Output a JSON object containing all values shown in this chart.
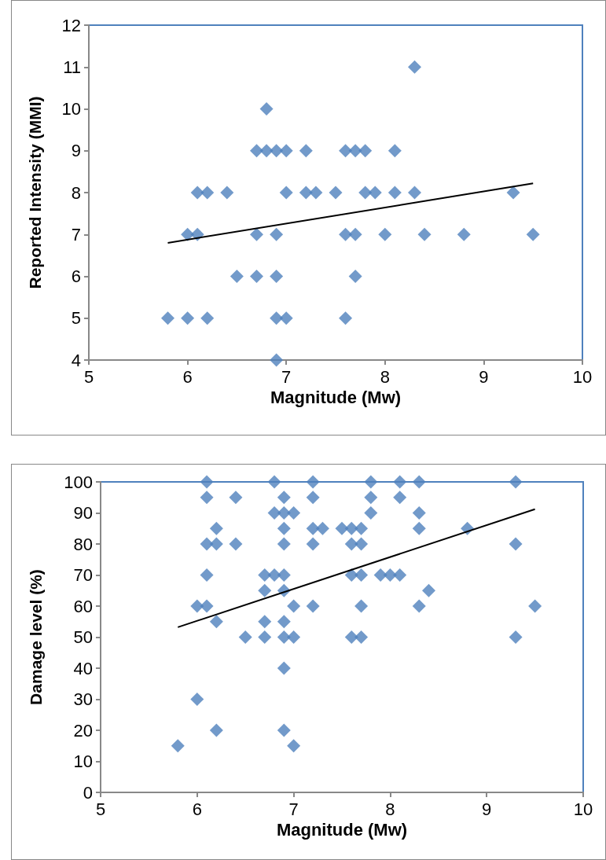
{
  "chart_data": [
    {
      "type": "scatter",
      "xlabel": "Magnitude (Mw)",
      "ylabel": "Reported Intensity (MMI)",
      "xlim": [
        5,
        10
      ],
      "xticks": [
        5,
        6,
        7,
        8,
        9,
        10
      ],
      "ylim": [
        4,
        12
      ],
      "yticks": [
        4,
        5,
        6,
        7,
        8,
        9,
        10,
        11,
        12
      ],
      "grid": false,
      "marker": "diamond",
      "series": [
        {
          "color": "#4f81bd",
          "x": [
            5.8,
            6.0,
            6.2,
            6.0,
            6.1,
            6.1,
            6.2,
            6.4,
            6.5,
            6.7,
            6.7,
            6.7,
            6.8,
            6.8,
            6.9,
            6.9,
            6.9,
            6.9,
            6.9,
            7.0,
            7.0,
            7.0,
            7.2,
            7.2,
            7.3,
            7.5,
            7.6,
            7.6,
            7.6,
            7.7,
            7.7,
            7.7,
            7.8,
            7.8,
            7.9,
            8.0,
            8.1,
            8.1,
            8.3,
            8.3,
            8.4,
            8.8,
            9.3,
            9.5
          ],
          "values": [
            5,
            5,
            5,
            7,
            7,
            8,
            8,
            8,
            6,
            6,
            7,
            9,
            9,
            10,
            9,
            7,
            6,
            5,
            4,
            5,
            8,
            9,
            9,
            8,
            8,
            8,
            9,
            7,
            5,
            9,
            7,
            6,
            9,
            8,
            8,
            7,
            9,
            8,
            8,
            11,
            7,
            7,
            8,
            7
          ]
        },
        {
          "type": "line",
          "color": "#000000",
          "marker": "none",
          "x": [
            5.8,
            9.5
          ],
          "values": [
            6.8,
            8.22
          ]
        }
      ]
    },
    {
      "type": "scatter",
      "xlabel": "Magnitude (Mw)",
      "ylabel": "Damage level (%)",
      "xlim": [
        5,
        10
      ],
      "xticks": [
        5,
        6,
        7,
        8,
        9,
        10
      ],
      "ylim": [
        0,
        100
      ],
      "yticks": [
        0,
        10,
        20,
        30,
        40,
        50,
        60,
        70,
        80,
        90,
        100
      ],
      "grid": false,
      "marker": "diamond",
      "series": [
        {
          "color": "#4f81bd",
          "x": [
            6.1,
            6.1,
            6.4,
            6.8,
            6.9,
            7.2,
            7.2,
            6.8,
            6.9,
            7.0,
            6.2,
            6.9,
            7.2,
            7.3,
            7.5,
            6.1,
            6.2,
            6.4,
            6.9,
            7.2,
            6.1,
            6.7,
            6.8,
            6.9,
            6.7,
            6.9,
            6.0,
            6.1,
            7.0,
            7.2,
            6.2,
            6.7,
            6.9,
            6.5,
            6.7,
            6.9,
            7.0,
            6.9,
            6.0,
            6.2,
            6.9,
            5.8,
            7.0,
            7.8,
            8.1,
            8.3,
            9.3,
            7.8,
            8.1,
            7.8,
            8.3,
            7.6,
            7.7,
            8.3,
            8.8,
            7.6,
            7.7,
            9.3,
            7.6,
            7.7,
            7.9,
            8.0,
            8.1,
            8.4,
            7.7,
            8.3,
            9.5,
            7.6,
            7.7,
            9.3
          ],
          "values": [
            100,
            95,
            95,
            100,
            95,
            100,
            95,
            90,
            90,
            90,
            85,
            85,
            85,
            85,
            85,
            80,
            80,
            80,
            80,
            80,
            70,
            70,
            70,
            70,
            65,
            65,
            60,
            60,
            60,
            60,
            55,
            55,
            55,
            50,
            50,
            50,
            50,
            40,
            30,
            20,
            20,
            15,
            15,
            100,
            100,
            100,
            100,
            95,
            95,
            90,
            90,
            85,
            85,
            85,
            85,
            80,
            80,
            80,
            70,
            70,
            70,
            70,
            70,
            65,
            60,
            60,
            60,
            50,
            50,
            50
          ]
        },
        {
          "type": "line",
          "color": "#000000",
          "marker": "none",
          "x": [
            5.8,
            9.5
          ],
          "values": [
            53.2,
            91.2
          ]
        }
      ]
    }
  ]
}
